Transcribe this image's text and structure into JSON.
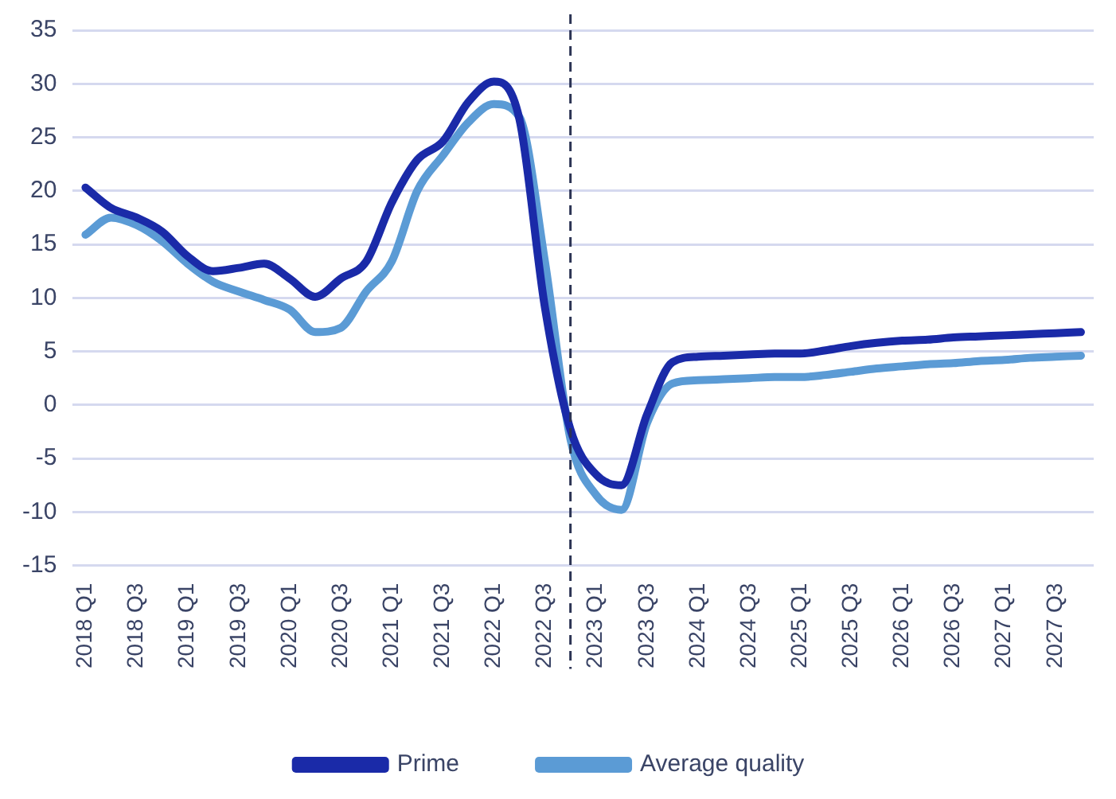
{
  "chart_data": {
    "type": "line",
    "categories": [
      "2018 Q1",
      null,
      "2018 Q3",
      null,
      "2019 Q1",
      null,
      "2019 Q3",
      null,
      "2020 Q1",
      null,
      "2020 Q3",
      null,
      "2021 Q1",
      null,
      "2021 Q3",
      null,
      "2022 Q1",
      null,
      "2022 Q3",
      null,
      "2023 Q1",
      null,
      "2023 Q3",
      null,
      "2024 Q1",
      null,
      "2024 Q3",
      null,
      "2025 Q1",
      null,
      "2025 Q3",
      null,
      "2026 Q1",
      null,
      "2026 Q3",
      null,
      "2027 Q1",
      null,
      "2027 Q3",
      null
    ],
    "series": [
      {
        "name": "Prime",
        "color": "#1a2aa8",
        "values": [
          20.3,
          18.4,
          17.5,
          16.2,
          13.9,
          12.5,
          12.8,
          13.2,
          11.8,
          10.1,
          11.8,
          13.4,
          18.9,
          22.9,
          24.6,
          28.3,
          30.2,
          26.7,
          9.1,
          -2.3,
          -6.5,
          -7.5,
          -0.9,
          4.0,
          4.5,
          4.6,
          4.7,
          4.8,
          4.8,
          5.1,
          5.5,
          5.8,
          6.0,
          6.1,
          6.3,
          6.4,
          6.5,
          6.6,
          6.7,
          6.8
        ]
      },
      {
        "name": "Average quality",
        "color": "#5b9bd5",
        "values": [
          15.9,
          17.5,
          16.8,
          15.3,
          13.2,
          11.5,
          10.6,
          9.8,
          8.9,
          6.8,
          7.2,
          10.6,
          13.4,
          20.0,
          23.3,
          26.4,
          28.1,
          26.9,
          13.4,
          -3.2,
          -8.4,
          -9.8,
          -1.7,
          2.0,
          2.3,
          2.4,
          2.5,
          2.6,
          2.6,
          2.8,
          3.1,
          3.4,
          3.6,
          3.8,
          3.9,
          4.1,
          4.2,
          4.4,
          4.5,
          4.6
        ]
      }
    ],
    "ylim": [
      -15,
      35
    ],
    "yticks": [
      -15,
      -10,
      -5,
      0,
      5,
      10,
      15,
      20,
      25,
      30,
      35
    ],
    "grid": "y",
    "legend": "bottom",
    "marker": "none",
    "line_style": "solid"
  }
}
